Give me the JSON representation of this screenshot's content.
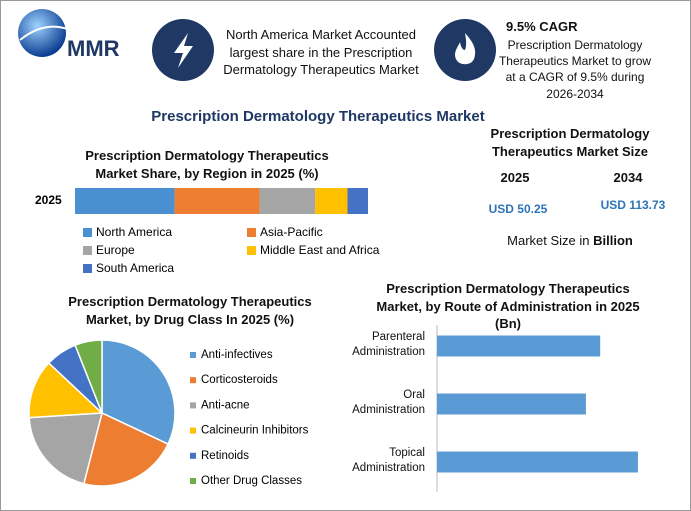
{
  "header": {
    "logo": "MMR",
    "highlight_left": "North America Market Accounted largest share in the Prescription Dermatology Therapeutics Market",
    "highlight_right_title": "9.5% CAGR",
    "highlight_right": "Prescription Dermatology Therapeutics Market to grow at a CAGR of 9.5% during 2026-2034"
  },
  "title": "Prescription Dermatology Therapeutics Market",
  "market_size": {
    "title": "Prescription Dermatology Therapeutics Market Size",
    "years": [
      "2025",
      "2034"
    ],
    "values": [
      "USD 50.25",
      "USD 113.73"
    ],
    "note": "Market Size in",
    "note_unit": "Billion"
  },
  "chart_data": [
    {
      "type": "stacked_bar",
      "title": "Prescription Dermatology Therapeutics Market Share, by Region in 2025 (%)",
      "categories": [
        "2025"
      ],
      "legend": "bottom",
      "series": [
        {
          "name": "North America",
          "color": "#4a90d0",
          "values": [
            34
          ]
        },
        {
          "name": "Asia-Pacific",
          "color": "#ed7d31",
          "values": [
            29
          ]
        },
        {
          "name": "Europe",
          "color": "#a5a5a5",
          "values": [
            19
          ]
        },
        {
          "name": "Middle East and Africa",
          "color": "#ffc000",
          "values": [
            11
          ]
        },
        {
          "name": "South America",
          "color": "#4472c4",
          "values": [
            7
          ]
        }
      ]
    },
    {
      "type": "pie",
      "title": "Prescription Dermatology Therapeutics Market, by Drug Class In 2025 (%)",
      "legend": "right",
      "categories": [
        "Anti-infectives",
        "Corticosteroids",
        "Anti-acne",
        "Calcineurin Inhibitors",
        "Retinoids",
        "Other Drug Classes"
      ],
      "values": [
        32,
        22,
        20,
        13,
        7,
        6
      ],
      "colors": [
        "#5b9bd5",
        "#ed7d31",
        "#a5a5a5",
        "#ffc000",
        "#4472c4",
        "#70ad47"
      ]
    },
    {
      "type": "hbar",
      "title": "Prescription Dermatology Therapeutics Market, by Route of Administration in 2025 (Bn)",
      "categories": [
        "Parenteral Administration",
        "Oral Administration",
        "Topical Administration"
      ],
      "values": [
        16.0,
        14.6,
        19.7
      ],
      "color": "#5b9bd5"
    }
  ]
}
